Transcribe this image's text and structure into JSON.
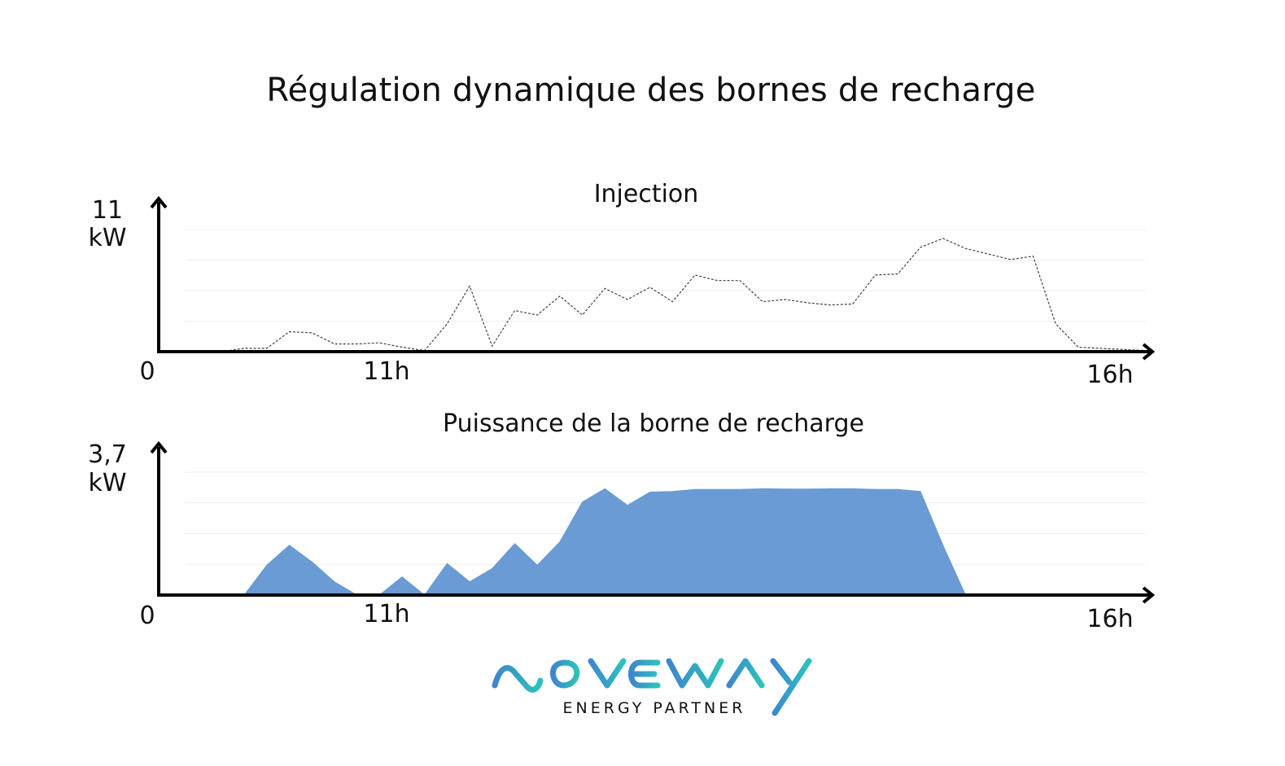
{
  "page_title": "Régulation dynamique des bornes de recharge",
  "colors": {
    "line": "#3a4456",
    "area_fill": "#6a9bd4",
    "grid": "#ececec",
    "axis": "#000000",
    "logo_left": "#3e86cf",
    "logo_right": "#2cc2bb",
    "logo_tagline": "#3e86cf"
  },
  "chart_data": [
    {
      "type": "line",
      "title": "Injection",
      "ylabel_value": "11",
      "ylabel_unit": "kW",
      "origin_label": "0",
      "x_tick_labels": [
        "11h",
        "16h"
      ],
      "ylim": [
        0,
        11
      ],
      "grid": true,
      "line_style": "dashed",
      "x": [
        0,
        2,
        3,
        4,
        5,
        6,
        7,
        8,
        9,
        10,
        11,
        12,
        13,
        14,
        15,
        16,
        17,
        18,
        19,
        20,
        21,
        22,
        23,
        24,
        25,
        26,
        27,
        28,
        29,
        30,
        31,
        32,
        33,
        34,
        35,
        36,
        37,
        38,
        39,
        40,
        41,
        42,
        43
      ],
      "values": [
        0,
        0,
        0.3,
        0.3,
        1.8,
        1.7,
        0.7,
        0.7,
        0.8,
        0.4,
        0.1,
        2.5,
        5.9,
        0.5,
        3.7,
        3.3,
        5.0,
        3.3,
        5.7,
        4.7,
        5.8,
        4.5,
        6.9,
        6.4,
        6.4,
        4.5,
        4.7,
        4.4,
        4.2,
        4.3,
        6.9,
        7.0,
        9.4,
        10.2,
        9.3,
        8.8,
        8.3,
        8.6,
        2.5,
        0.4,
        0.3,
        0.2,
        0.1
      ]
    },
    {
      "type": "area",
      "title": "Puissance de la borne de recharge",
      "ylabel_value": "3,7",
      "ylabel_unit": "kW",
      "origin_label": "0",
      "x_tick_labels": [
        "11h",
        "16h"
      ],
      "ylim": [
        0,
        3.7
      ],
      "grid": true,
      "x": [
        0,
        3,
        4,
        5,
        6,
        7,
        8,
        9,
        10,
        11,
        12,
        13,
        14,
        15,
        16,
        17,
        18,
        19,
        20,
        21,
        22,
        23,
        24,
        25,
        26,
        27,
        28,
        29,
        30,
        31,
        32,
        33,
        34,
        35,
        43
      ],
      "values": [
        0,
        0,
        0.9,
        1.5,
        1.0,
        0.4,
        0,
        0,
        0.55,
        0,
        0.95,
        0.4,
        0.8,
        1.55,
        0.9,
        1.6,
        2.8,
        3.2,
        2.7,
        3.1,
        3.12,
        3.18,
        3.18,
        3.18,
        3.2,
        3.19,
        3.19,
        3.2,
        3.2,
        3.18,
        3.18,
        3.12,
        1.5,
        0,
        0
      ]
    }
  ],
  "logo": {
    "wordmark": "NOVEWAY",
    "tagline": "ENERGY PARTNER"
  }
}
